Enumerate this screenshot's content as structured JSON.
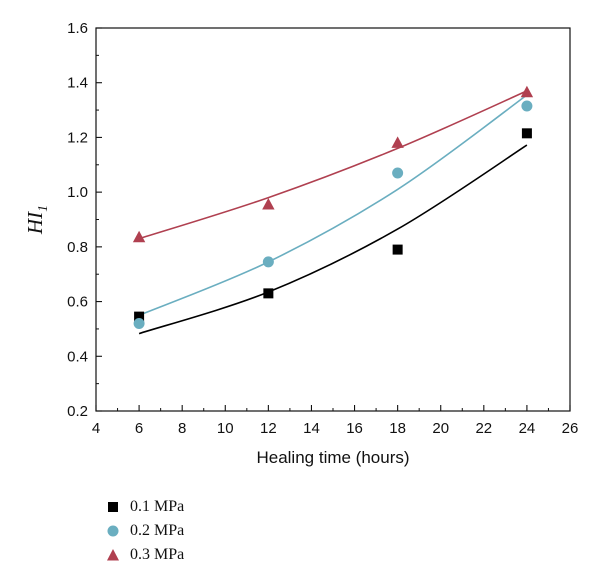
{
  "chart_data": {
    "type": "scatter",
    "xlabel": "Healing time (hours)",
    "ylabel": "HI",
    "ylabel_subscript": "1",
    "xlim": [
      4,
      26
    ],
    "ylim": [
      0.2,
      1.6
    ],
    "xticks": [
      "4",
      "6",
      "8",
      "10",
      "12",
      "14",
      "16",
      "18",
      "20",
      "22",
      "24",
      "26"
    ],
    "yticks": [
      "0.2",
      "0.4",
      "0.6",
      "0.8",
      "1.0",
      "1.2",
      "1.4",
      "1.6"
    ],
    "grid": false,
    "legend_position": "bottom-left",
    "series": [
      {
        "name": "0.1 MPa",
        "marker": "square",
        "color": "#000000",
        "line_color": "#000000",
        "points": [
          [
            6,
            0.545
          ],
          [
            12,
            0.63
          ],
          [
            18,
            0.79
          ],
          [
            24,
            1.215
          ]
        ],
        "fit": [
          [
            6,
            0.483
          ],
          [
            12,
            0.635
          ],
          [
            18,
            0.865
          ],
          [
            24,
            1.172
          ]
        ]
      },
      {
        "name": "0.2 MPa",
        "marker": "circle",
        "color": "#6aaec0",
        "line_color": "#6aaec0",
        "points": [
          [
            6,
            0.52
          ],
          [
            12,
            0.745
          ],
          [
            18,
            1.07
          ],
          [
            24,
            1.315
          ]
        ],
        "fit": [
          [
            6,
            0.55
          ],
          [
            12,
            0.745
          ],
          [
            18,
            1.01
          ],
          [
            24,
            1.355
          ]
        ]
      },
      {
        "name": "0.3 MPa",
        "marker": "triangle",
        "color": "#b04050",
        "line_color": "#b04050",
        "points": [
          [
            6,
            0.835
          ],
          [
            12,
            0.955
          ],
          [
            18,
            1.18
          ],
          [
            24,
            1.365
          ]
        ],
        "fit": [
          [
            6,
            0.83
          ],
          [
            12,
            0.98
          ],
          [
            18,
            1.16
          ],
          [
            24,
            1.37
          ]
        ]
      }
    ]
  }
}
